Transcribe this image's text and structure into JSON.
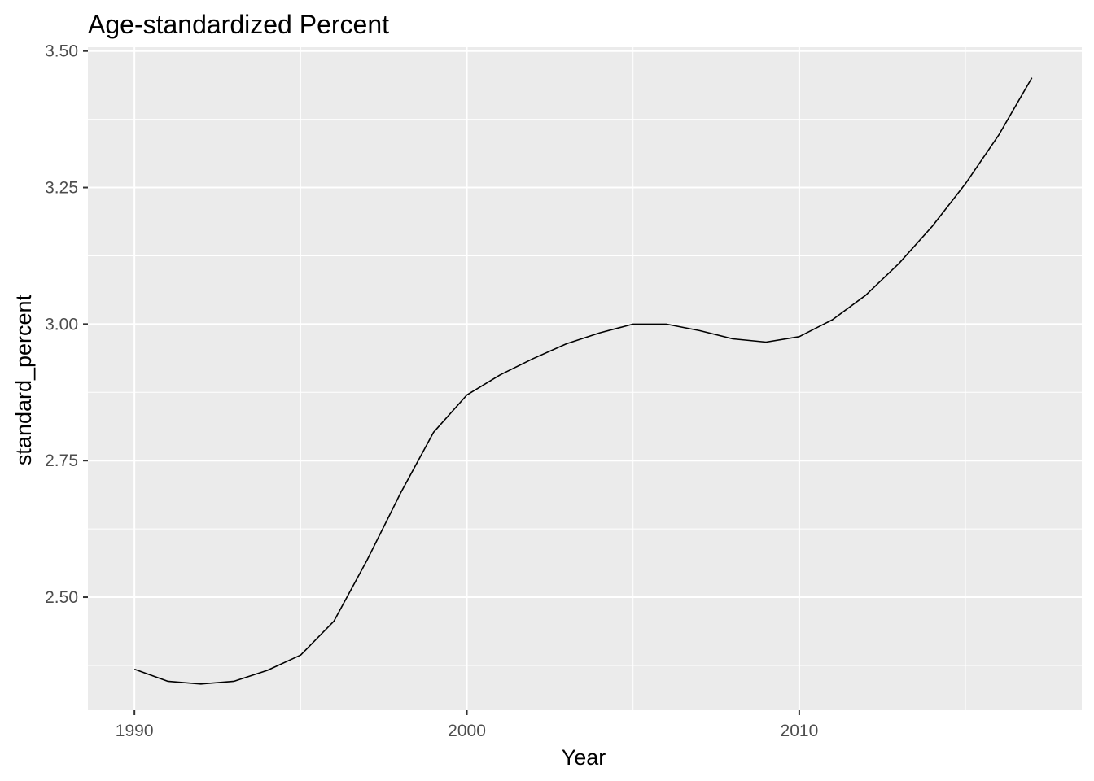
{
  "chart_data": {
    "type": "line",
    "title": "Age-standardized Percent",
    "xlabel": "Year",
    "ylabel": "standard_percent",
    "xlim": [
      1988.6,
      2018.5
    ],
    "ylim": [
      2.293,
      3.507
    ],
    "x_ticks": [
      1990,
      2000,
      2010
    ],
    "x_tick_labels": [
      "1990",
      "2000",
      "2010"
    ],
    "y_ticks": [
      2.5,
      2.75,
      3.0,
      3.25,
      3.5
    ],
    "y_tick_labels": [
      "2.50",
      "2.75",
      "3.00",
      "3.25",
      "3.50"
    ],
    "grid": true,
    "legend": "none",
    "background": "#ebebeb",
    "grid_color": "#ffffff",
    "line_color": "#000000",
    "series": [
      {
        "x": [
          1990,
          1991,
          1992,
          1993,
          1994,
          1995,
          1996,
          1997,
          1998,
          1999,
          2000,
          2001,
          2002,
          2003,
          2004,
          2005,
          2006,
          2007,
          2008,
          2009,
          2010,
          2011,
          2012,
          2013,
          2014,
          2015,
          2016,
          2017
        ],
        "values": [
          2.368,
          2.346,
          2.341,
          2.346,
          2.366,
          2.394,
          2.456,
          2.568,
          2.69,
          2.802,
          2.87,
          2.907,
          2.937,
          2.964,
          2.984,
          3.0,
          3.0,
          2.988,
          2.973,
          2.967,
          2.977,
          3.008,
          3.053,
          3.111,
          3.179,
          3.257,
          3.346,
          3.451
        ]
      }
    ]
  }
}
